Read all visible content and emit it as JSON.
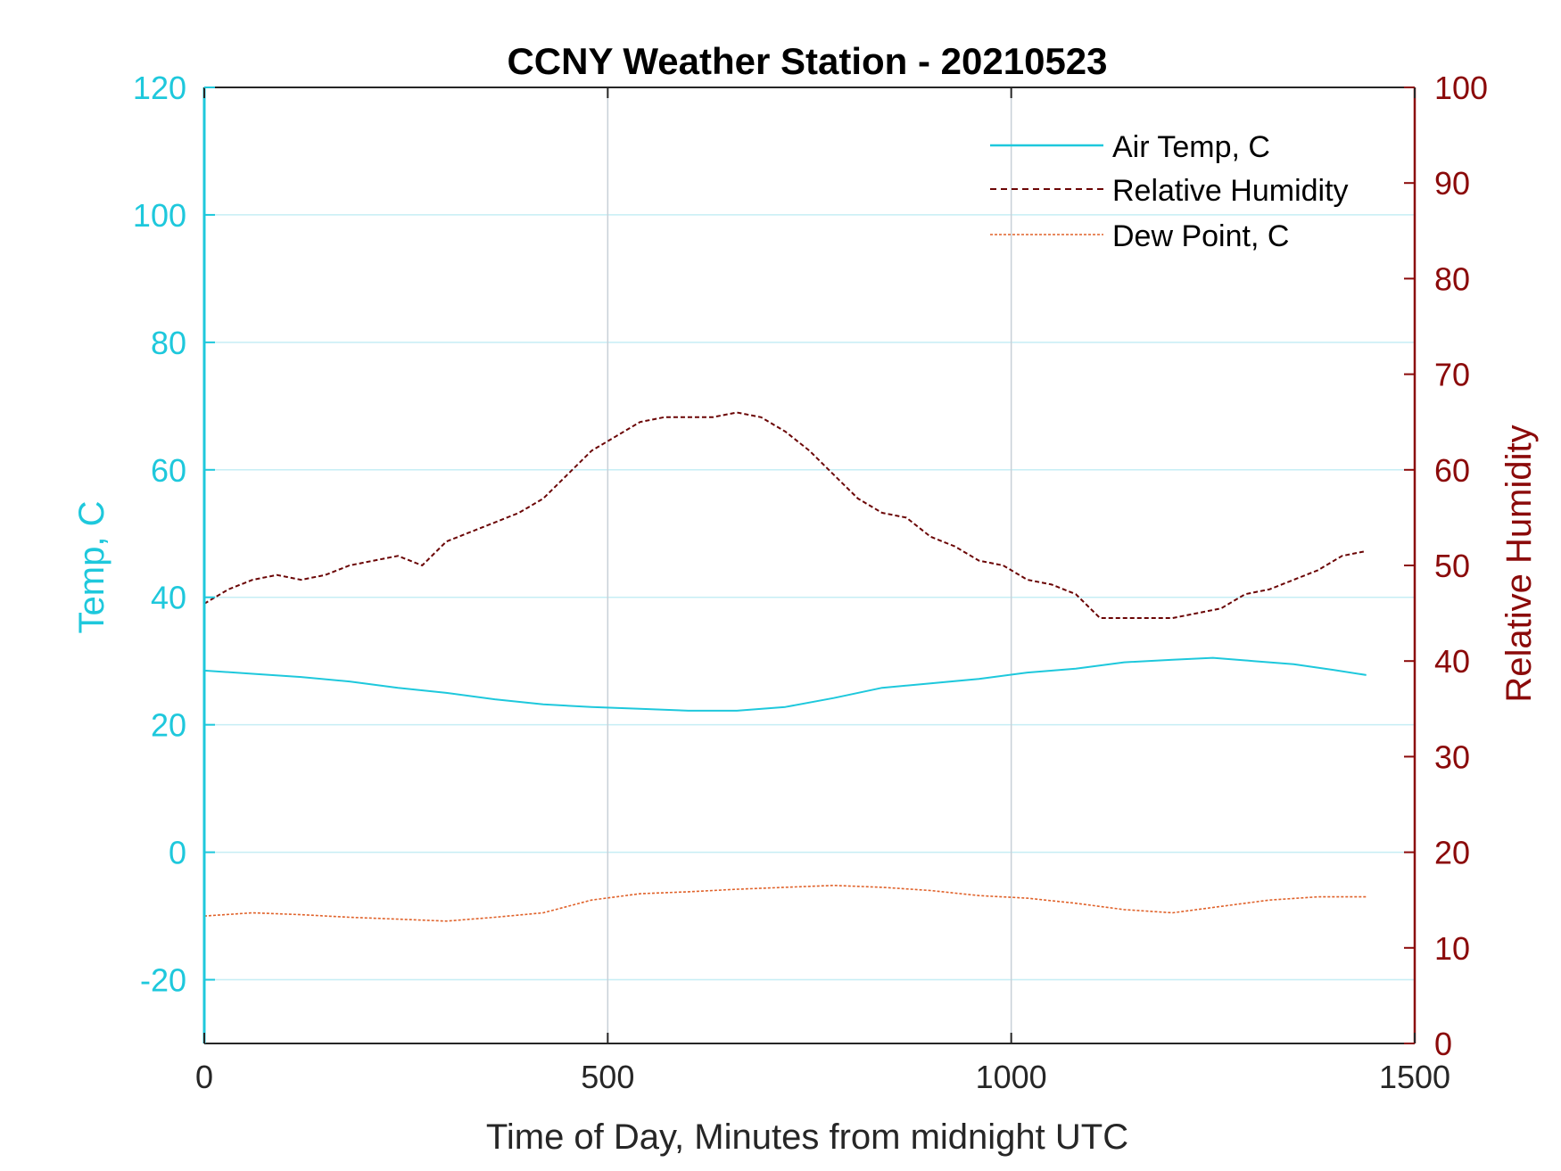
{
  "chart_data": {
    "type": "line",
    "title": "CCNY Weather Station - 20210523",
    "xlabel": "Time of Day, Minutes from midnight UTC",
    "ylabel_left": "Temp, C",
    "ylabel_right": "Relative Humidity",
    "xlim": [
      0,
      1500
    ],
    "ylim_left": [
      -30,
      120
    ],
    "ylim_right": [
      0,
      100
    ],
    "x_ticks": [
      "0",
      "500",
      "1000",
      "1500"
    ],
    "y_left_ticks": [
      "-20",
      "0",
      "20",
      "40",
      "60",
      "80",
      "100",
      "120"
    ],
    "y_right_ticks": [
      "0",
      "10",
      "20",
      "30",
      "40",
      "50",
      "60",
      "70",
      "80",
      "90",
      "100"
    ],
    "grid": true,
    "legend_position": "top-right",
    "colors": {
      "left_axis": "#1ec8dc",
      "right_axis": "#8b0a0a",
      "air_temp": "#1ec8dc",
      "humidity": "#6b0505",
      "dew_point": "#e0622a",
      "grid_h": "#c6eef5",
      "grid_v": "#c8d0d8"
    },
    "series": [
      {
        "name": "Air Temp, C",
        "axis": "left",
        "style": "solid",
        "x": [
          0,
          60,
          120,
          180,
          240,
          300,
          360,
          420,
          480,
          540,
          600,
          660,
          720,
          780,
          840,
          900,
          960,
          1020,
          1080,
          1140,
          1200,
          1250,
          1300,
          1350,
          1400,
          1440
        ],
        "values": [
          28.5,
          28.0,
          27.5,
          26.8,
          25.8,
          25.0,
          24.0,
          23.2,
          22.8,
          22.5,
          22.2,
          22.2,
          22.8,
          24.2,
          25.8,
          26.5,
          27.2,
          28.2,
          28.8,
          29.8,
          30.2,
          30.5,
          30.0,
          29.5,
          28.6,
          27.8
        ]
      },
      {
        "name": "Relative Humidity",
        "axis": "right",
        "style": "dashed",
        "x": [
          0,
          30,
          60,
          90,
          120,
          150,
          180,
          210,
          240,
          270,
          300,
          330,
          360,
          390,
          420,
          450,
          480,
          510,
          540,
          570,
          600,
          630,
          660,
          690,
          720,
          750,
          780,
          810,
          840,
          870,
          900,
          930,
          960,
          990,
          1020,
          1050,
          1080,
          1110,
          1140,
          1170,
          1200,
          1230,
          1260,
          1290,
          1320,
          1350,
          1380,
          1410,
          1440
        ],
        "values": [
          46.0,
          47.5,
          48.5,
          49.0,
          48.5,
          49.0,
          50.0,
          50.5,
          51.0,
          50.0,
          52.5,
          53.5,
          54.5,
          55.5,
          57.0,
          59.5,
          62.0,
          63.5,
          65.0,
          65.5,
          65.5,
          65.5,
          66.0,
          65.5,
          64.0,
          62.0,
          59.5,
          57.0,
          55.5,
          55.0,
          53.0,
          52.0,
          50.5,
          50.0,
          48.5,
          48.0,
          47.0,
          44.5,
          44.5,
          44.5,
          44.5,
          45.0,
          45.5,
          47.0,
          47.5,
          48.5,
          49.5,
          51.0,
          51.5
        ]
      },
      {
        "name": "Dew Point, C",
        "axis": "left",
        "style": "dashed",
        "x": [
          0,
          60,
          120,
          180,
          240,
          300,
          360,
          420,
          480,
          540,
          600,
          660,
          720,
          780,
          840,
          900,
          960,
          1020,
          1080,
          1140,
          1200,
          1260,
          1320,
          1380,
          1440
        ],
        "values": [
          -10.0,
          -9.5,
          -9.8,
          -10.2,
          -10.5,
          -10.8,
          -10.2,
          -9.5,
          -7.5,
          -6.5,
          -6.2,
          -5.8,
          -5.5,
          -5.2,
          -5.5,
          -6.0,
          -6.8,
          -7.2,
          -8.0,
          -9.0,
          -9.5,
          -8.5,
          -7.5,
          -7.0,
          -7.0
        ]
      }
    ]
  }
}
